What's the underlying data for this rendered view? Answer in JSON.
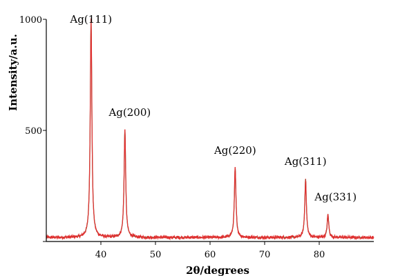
{
  "chart_data": {
    "type": "line",
    "title": "",
    "xlabel": "2θ/degrees",
    "ylabel": "Intensity/a.u.",
    "xlim": [
      30,
      90
    ],
    "ylim": [
      0,
      1000
    ],
    "x_ticks": [
      40,
      50,
      60,
      70,
      80
    ],
    "y_ticks": [
      0,
      500,
      1000
    ],
    "x_tick_labels": [
      "40",
      "50",
      "60",
      "70",
      "80"
    ],
    "y_tick_labels": [
      "",
      "500",
      "1000"
    ],
    "grid": false,
    "colors": {
      "data": "#e03030",
      "fit": "#2e7d32",
      "axis": "#000000"
    },
    "baseline": 18,
    "series": [
      {
        "peaks": [
          {
            "x": 38.2,
            "y": 1000,
            "width": 0.18
          },
          {
            "x": 44.4,
            "y": 500,
            "width": 0.18
          },
          {
            "x": 64.6,
            "y": 330,
            "width": 0.18
          },
          {
            "x": 77.5,
            "y": 280,
            "width": 0.18
          },
          {
            "x": 81.6,
            "y": 120,
            "width": 0.18
          }
        ]
      }
    ],
    "annotations": [
      {
        "text": "Ag(111)",
        "x": 38.2,
        "y": 960
      },
      {
        "text": "Ag(200)",
        "x": 45.3,
        "y": 540
      },
      {
        "text": "Ag(220)",
        "x": 64.6,
        "y": 370
      },
      {
        "text": "Ag(311)",
        "x": 77.5,
        "y": 320
      },
      {
        "text": "Ag(331)",
        "x": 83.0,
        "y": 160
      }
    ]
  }
}
